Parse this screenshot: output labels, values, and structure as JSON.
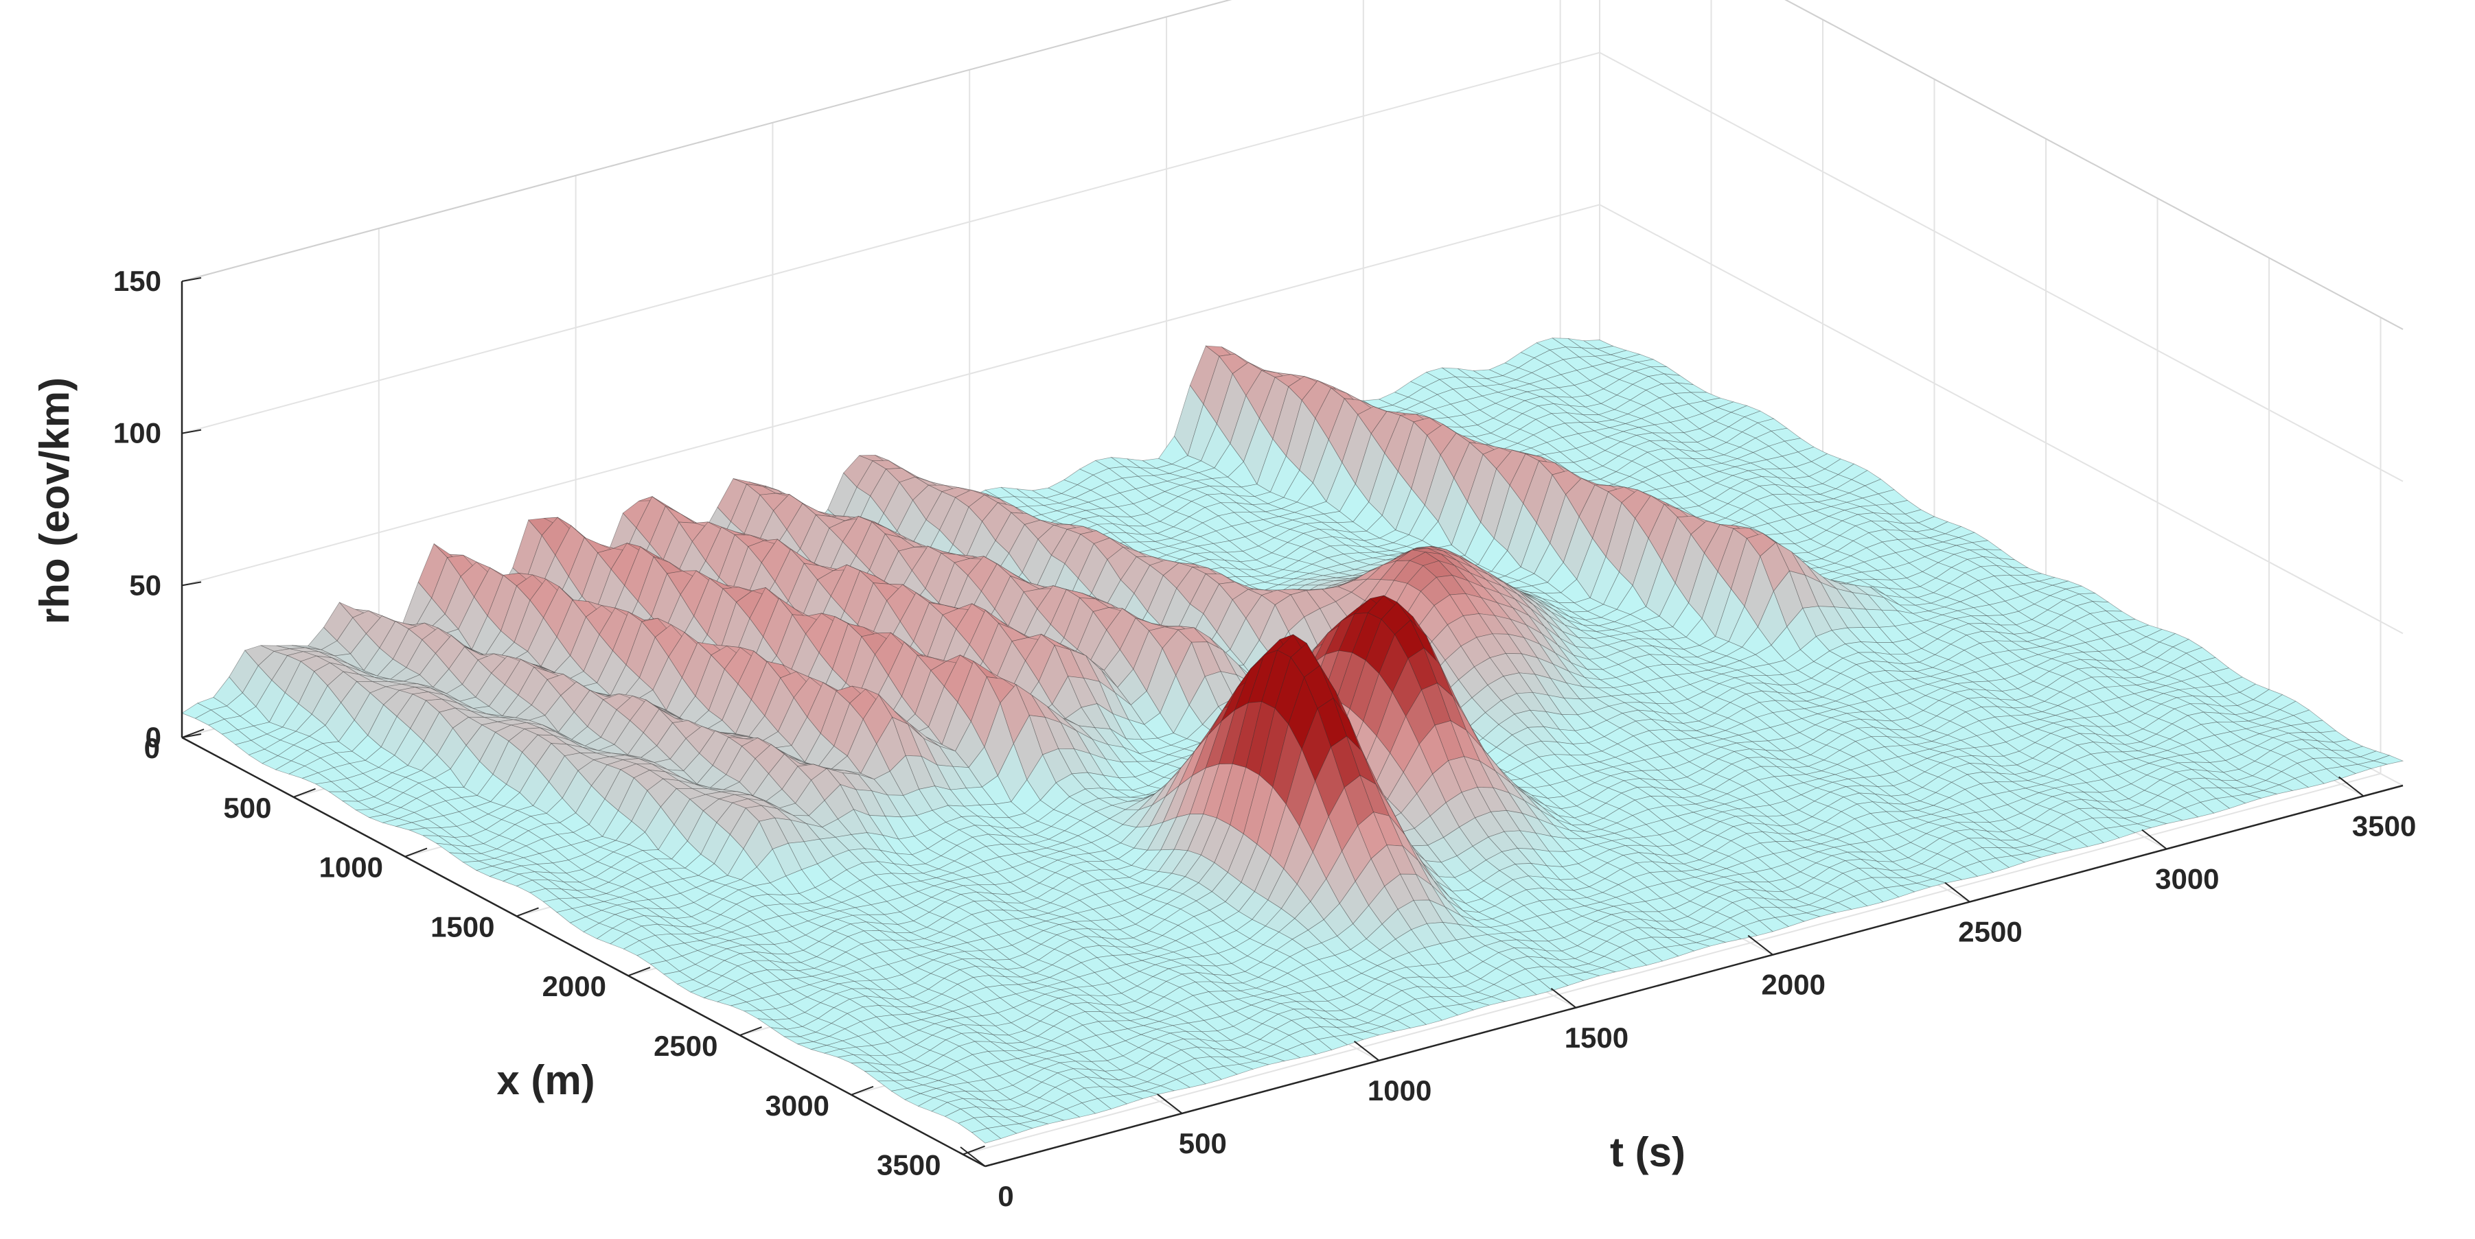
{
  "chart_data": {
    "type": "surface",
    "title": "",
    "xlabel": "t (s)",
    "ylabel": "x (m)",
    "zlabel": "rho (eov/km)",
    "xlim": [
      0,
      3600
    ],
    "ylim": [
      0,
      3600
    ],
    "zlim": [
      0,
      150
    ],
    "xticks": [
      "0",
      "500",
      "1000",
      "1500",
      "2000",
      "2500",
      "3000",
      "3500"
    ],
    "yticks": [
      "0",
      "500",
      "1000",
      "1500",
      "2000",
      "2500",
      "3000",
      "3500"
    ],
    "zticks": [
      "0",
      "50",
      "100",
      "150"
    ],
    "grid": true,
    "colormap": {
      "low": "#bff4f4",
      "mid": "#d99a9a",
      "high": "#a10f0f"
    },
    "edge_color": "#2b2b2b",
    "base_density": 8,
    "waves": [
      {
        "t_start": 180,
        "x_range": [
          0,
          1700
        ],
        "peak": 18
      },
      {
        "t_start": 420,
        "x_range": [
          0,
          1600
        ],
        "peak": 20
      },
      {
        "t_start": 650,
        "x_range": [
          0,
          1500
        ],
        "peak": 28
      },
      {
        "t_start": 900,
        "x_range": [
          0,
          1600
        ],
        "peak": 30
      },
      {
        "t_start": 1150,
        "x_range": [
          0,
          1400
        ],
        "peak": 28
      },
      {
        "t_start": 1400,
        "x_range": [
          0,
          1500
        ],
        "peak": 26
      },
      {
        "t_start": 1700,
        "x_range": [
          0,
          1400
        ],
        "peak": 24
      },
      {
        "t_start": 2600,
        "x_range": [
          0,
          1900
        ],
        "peak": 28
      }
    ],
    "peaks": [
      {
        "t": 1350,
        "x": 2600,
        "rho": 78
      },
      {
        "t": 1750,
        "x": 2300,
        "rho": 68
      },
      {
        "t": 2200,
        "x": 1700,
        "rho": 35
      },
      {
        "t": 2400,
        "x": 1500,
        "rho": 25
      }
    ]
  }
}
